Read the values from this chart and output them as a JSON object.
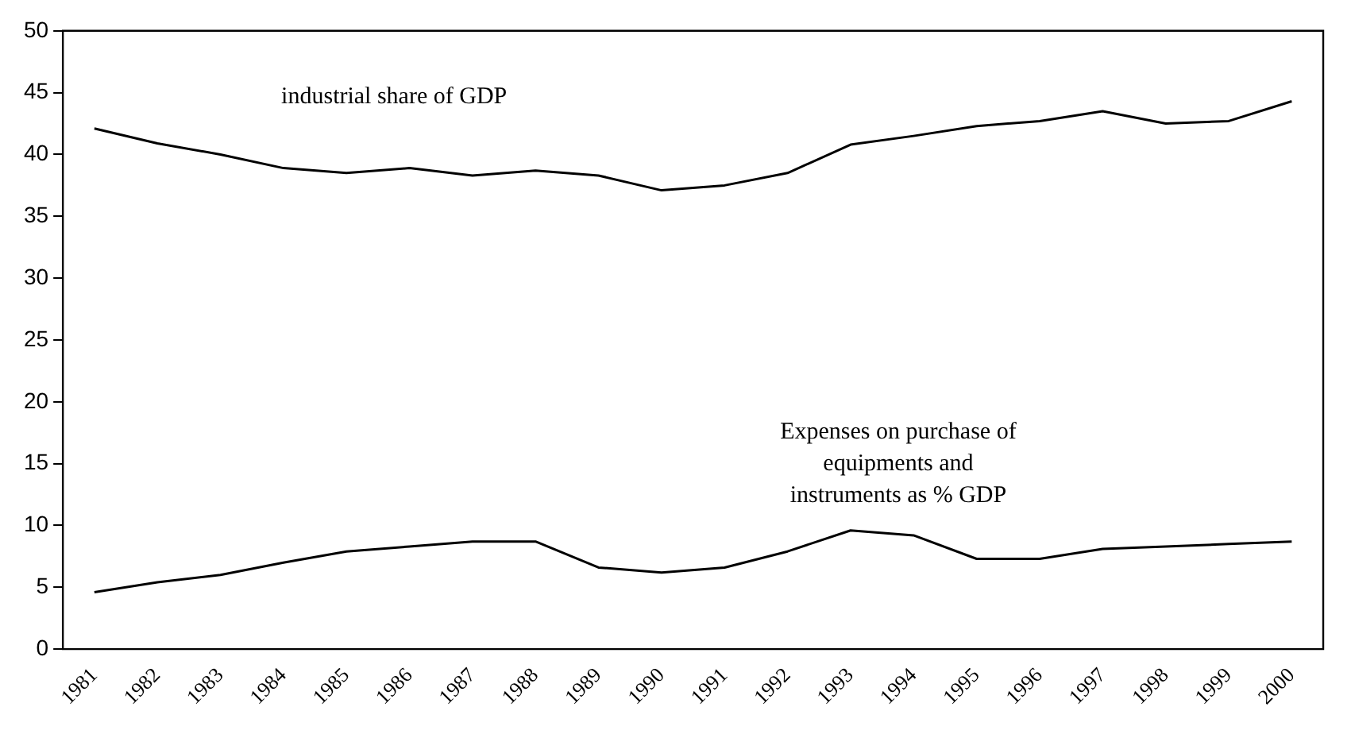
{
  "chart_data": {
    "type": "line",
    "categories": [
      "1981",
      "1982",
      "1983",
      "1984",
      "1985",
      "1986",
      "1987",
      "1988",
      "1989",
      "1990",
      "1991",
      "1992",
      "1993",
      "1994",
      "1995",
      "1996",
      "1997",
      "1998",
      "1999",
      "2000"
    ],
    "series": [
      {
        "name": "industrial share of GDP",
        "color": "#000000",
        "values": [
          42.1,
          40.9,
          40.0,
          38.9,
          38.5,
          38.9,
          38.3,
          38.7,
          38.3,
          37.1,
          37.5,
          38.5,
          40.8,
          41.5,
          42.3,
          42.7,
          43.5,
          42.5,
          42.7,
          44.3
        ]
      },
      {
        "name": "Expenses on purchase of\nequipments and\ninstruments as % GDP",
        "color": "#000000",
        "values": [
          4.6,
          5.4,
          6.0,
          7.0,
          7.9,
          8.3,
          8.7,
          8.7,
          6.6,
          6.2,
          6.6,
          7.9,
          9.6,
          9.2,
          7.3,
          7.3,
          8.1,
          8.3,
          8.5,
          8.7
        ]
      }
    ],
    "ylim": [
      0,
      50
    ],
    "yticks": [
      0,
      5,
      10,
      15,
      20,
      25,
      30,
      35,
      40,
      45,
      50
    ],
    "grid": false,
    "legend": false,
    "marker": "none",
    "line_style": "solid"
  }
}
